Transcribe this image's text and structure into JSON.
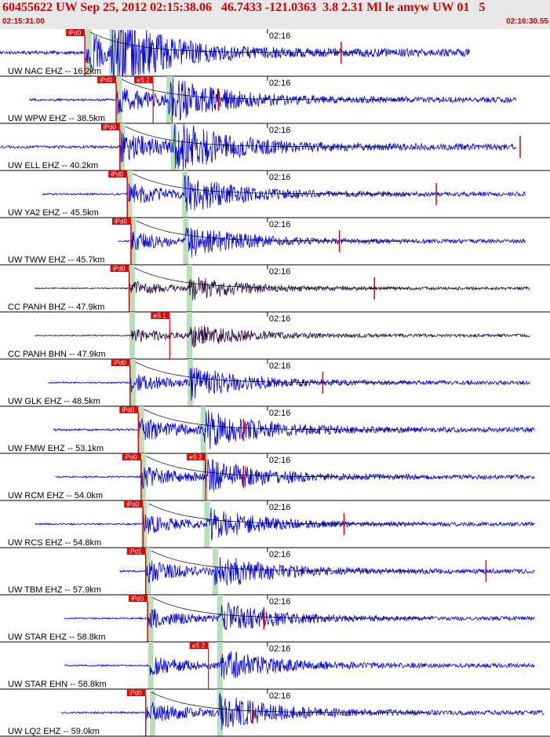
{
  "header": {
    "title": "60455622 UW Sep 25, 2012 02:15:38.06   46.7433 -121.0363  3.8 2.31 Ml le amyw UW 01   5",
    "time_start": "02:15:31.00",
    "time_end": "02:16:30.55"
  },
  "colors": {
    "header_text": "#d80000",
    "header_bg": "#e8e8e8",
    "trace_blue": "#0000ee",
    "trace_dark": "#2a0a40",
    "pick_red": "#ee0000",
    "theory_green": "#b8e0b8",
    "grid_line": "#000000"
  },
  "chart_data": {
    "type": "seismogram",
    "time_axis": {
      "start": "02:15:31.00",
      "end": "02:16:30.55",
      "units": "s",
      "tick_label": "02:16",
      "tick_time_s": 29.0
    },
    "event": {
      "id": "60455622",
      "network": "UW",
      "origin": "Sep 25, 2012 02:15:38.06",
      "lat": 46.7433,
      "lon": -121.0363,
      "depth_km": 3.8,
      "magnitude": 2.31,
      "mag_type": "Ml"
    },
    "traces": [
      {
        "label": "UW NAC EHZ -- 16.2km",
        "dist_km": 16.2,
        "color": "blue",
        "amp": 1.6,
        "start_s": 0.0,
        "end_s": 51.0,
        "p_pick": {
          "label": "iPd0",
          "t": 9.2
        },
        "s_pick": null,
        "p_theory": 9.6,
        "s_theory": 12.1,
        "coda_s": 37.0
      },
      {
        "label": "UW WPW EHZ -- 38.5km",
        "dist_km": 38.5,
        "color": "blue",
        "amp": 1.1,
        "start_s": 3.2,
        "end_s": 56.0,
        "p_pick": {
          "label": "iPd0",
          "t": 12.6
        },
        "s_pick": {
          "label": "eS 2",
          "t": 16.6
        },
        "p_theory": 12.9,
        "s_theory": 18.3,
        "coda_s": 23.7
      },
      {
        "label": "UW ELL EHZ -- 40.2km",
        "dist_km": 40.2,
        "color": "blue",
        "amp": 1.3,
        "start_s": 0.0,
        "end_s": 56.0,
        "p_pick": {
          "label": "iPd0",
          "t": 13.0
        },
        "s_pick": null,
        "p_theory": 13.2,
        "s_theory": 18.8,
        "coda_s": 56.4
      },
      {
        "label": "UW YA2 EHZ -- 45.5km",
        "dist_km": 45.5,
        "color": "blue",
        "amp": 0.9,
        "start_s": 4.6,
        "end_s": 57.0,
        "p_pick": {
          "label": "iPd0",
          "t": 13.8
        },
        "s_pick": null,
        "p_theory": 14.0,
        "s_theory": 20.0,
        "coda_s": 47.3
      },
      {
        "label": "UW TWW EHZ -- 45.7km",
        "dist_km": 45.7,
        "color": "blue",
        "amp": 0.8,
        "start_s": 12.8,
        "end_s": 57.0,
        "p_pick": {
          "label": "iPd0",
          "t": 14.2
        },
        "s_pick": null,
        "p_theory": 14.4,
        "s_theory": 20.1,
        "coda_s": 36.8
      },
      {
        "label": "CC PANH BHZ -- 47.9km",
        "dist_km": 47.9,
        "color": "dark",
        "amp": 0.6,
        "start_s": 3.8,
        "end_s": 57.5,
        "p_pick": {
          "label": "iPd0",
          "t": 14.0
        },
        "s_pick": null,
        "p_theory": 14.3,
        "s_theory": 20.5,
        "coda_s": 40.6
      },
      {
        "label": "CC PANH BHN -- 47.9km",
        "dist_km": 47.9,
        "color": "dark",
        "amp": 0.6,
        "start_s": 3.8,
        "end_s": 57.5,
        "p_pick": null,
        "s_pick": {
          "label": "eS 1",
          "t": 18.4
        },
        "p_theory": 14.3,
        "s_theory": 20.5,
        "coda_s": null
      },
      {
        "label": "UW GLK EHZ -- 48.5km",
        "dist_km": 48.5,
        "color": "blue",
        "amp": 0.8,
        "start_s": 5.2,
        "end_s": 57.5,
        "p_pick": {
          "label": "iPd0",
          "t": 14.1
        },
        "s_pick": null,
        "p_theory": 14.4,
        "s_theory": 20.6,
        "coda_s": 35.0
      },
      {
        "label": "UW FMW EHZ -- 53.1km",
        "dist_km": 53.1,
        "color": "blue",
        "amp": 1.0,
        "start_s": 5.8,
        "end_s": 58.0,
        "p_pick": {
          "label": "iPd0",
          "t": 15.0
        },
        "s_pick": null,
        "p_theory": 15.3,
        "s_theory": 22.0,
        "coda_s": 26.4
      },
      {
        "label": "UW RCM EHZ -- 54.0km",
        "dist_km": 54.0,
        "color": "blue",
        "amp": 0.9,
        "start_s": 6.0,
        "end_s": 58.0,
        "p_pick": {
          "label": "iPd0",
          "t": 15.3
        },
        "s_pick": {
          "label": "eS 2",
          "t": 22.3
        },
        "p_theory": 15.5,
        "s_theory": 22.2,
        "coda_s": 26.4
      },
      {
        "label": "UW RCS EHZ -- 54.8km",
        "dist_km": 54.8,
        "color": "blue",
        "amp": 0.8,
        "start_s": 3.8,
        "end_s": 58.0,
        "p_pick": {
          "label": "iPd0",
          "t": 15.5
        },
        "s_pick": null,
        "p_theory": 15.6,
        "s_theory": 22.4,
        "coda_s": 37.3
      },
      {
        "label": "UW TBM EHZ -- 57.9km",
        "dist_km": 57.9,
        "color": "blue",
        "amp": 0.9,
        "start_s": 13.0,
        "end_s": 58.0,
        "p_pick": {
          "label": "iPd1",
          "t": 15.8
        },
        "s_pick": null,
        "p_theory": 16.0,
        "s_theory": 23.3,
        "coda_s": 52.7
      },
      {
        "label": "UW STAR EHZ -- 58.8km",
        "dist_km": 58.8,
        "color": "blue",
        "amp": 0.8,
        "start_s": 7.0,
        "end_s": 58.0,
        "p_pick": {
          "label": "iPd0",
          "t": 16.0
        },
        "s_pick": null,
        "p_theory": 16.3,
        "s_theory": 23.8,
        "coda_s": 28.6
      },
      {
        "label": "UW STAR EHN -- 58.8km",
        "dist_km": 58.8,
        "color": "blue",
        "amp": 0.8,
        "start_s": 7.0,
        "end_s": 58.0,
        "p_pick": null,
        "s_pick": {
          "label": "eS 2",
          "t": 22.6
        },
        "p_theory": 16.3,
        "s_theory": 23.8,
        "coda_s": null
      },
      {
        "label": "UW LQ2 EHZ -- 59.0km",
        "dist_km": 59.0,
        "color": "blue",
        "amp": 0.9,
        "start_s": 6.6,
        "end_s": 59.0,
        "p_pick": {
          "label": "iPd0",
          "t": 15.8
        },
        "s_pick": null,
        "p_theory": 16.5,
        "s_theory": 23.8,
        "coda_s": 27.4
      }
    ]
  }
}
